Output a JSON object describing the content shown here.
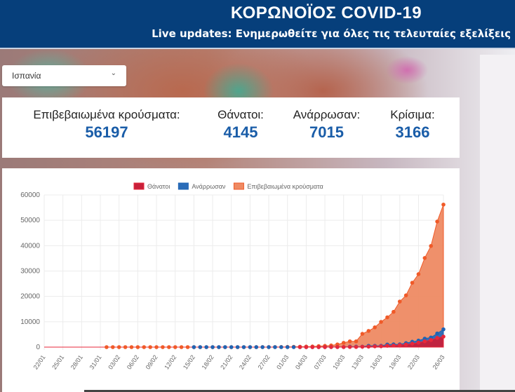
{
  "header": {
    "title": "ΚΟΡΩΝΟΪΟΣ COVID-19",
    "subtitle": "Live updates: Ενημερωθείτε για όλες τις τελευταίες εξελίξεις"
  },
  "country_select": {
    "value": "Ισπανία"
  },
  "stats": [
    {
      "label": "Επιβεβαιωμένα κρούσματα:",
      "value": "56197"
    },
    {
      "label": "Θάνατοι:",
      "value": "4145"
    },
    {
      "label": "Ανάρρωσαν:",
      "value": "7015"
    },
    {
      "label": "Κρίσιμα:",
      "value": "3166"
    }
  ],
  "chart_data": {
    "type": "area",
    "legend_position": "top",
    "ylim": [
      0,
      60000
    ],
    "yticks": [
      0,
      10000,
      20000,
      30000,
      40000,
      50000,
      60000
    ],
    "x": [
      "22/01",
      "23/01",
      "24/01",
      "25/01",
      "26/01",
      "27/01",
      "28/01",
      "29/01",
      "30/01",
      "31/01",
      "01/02",
      "02/02",
      "03/02",
      "04/02",
      "05/02",
      "06/02",
      "07/02",
      "08/02",
      "09/02",
      "10/02",
      "11/02",
      "12/02",
      "13/02",
      "14/02",
      "15/02",
      "16/02",
      "17/02",
      "18/02",
      "19/02",
      "20/02",
      "21/02",
      "22/02",
      "23/02",
      "24/02",
      "25/02",
      "26/02",
      "27/02",
      "28/02",
      "29/02",
      "01/03",
      "02/03",
      "03/03",
      "04/03",
      "05/03",
      "06/03",
      "07/03",
      "08/03",
      "09/03",
      "10/03",
      "11/03",
      "12/03",
      "13/03",
      "14/03",
      "15/03",
      "16/03",
      "17/03",
      "18/03",
      "19/03",
      "20/03",
      "21/03",
      "22/03",
      "23/03",
      "24/03",
      "25/03",
      "26/03"
    ],
    "xtick_labels": [
      "22/01",
      "25/01",
      "28/01",
      "31/01",
      "03/02",
      "06/02",
      "09/02",
      "12/02",
      "15/02",
      "18/02",
      "21/02",
      "24/02",
      "27/02",
      "01/03",
      "04/03",
      "07/03",
      "10/03",
      "13/03",
      "16/03",
      "19/03",
      "22/03",
      "26/03"
    ],
    "series": [
      {
        "name": "Θάνατοι",
        "color": "#e8273a",
        "fill": "#c8203a",
        "values": [
          0,
          0,
          0,
          0,
          0,
          0,
          0,
          0,
          0,
          0,
          0,
          0,
          0,
          0,
          0,
          0,
          0,
          0,
          0,
          0,
          0,
          0,
          0,
          0,
          0,
          0,
          0,
          0,
          0,
          0,
          0,
          0,
          0,
          0,
          0,
          0,
          0,
          0,
          0,
          0,
          0,
          1,
          2,
          3,
          5,
          10,
          17,
          28,
          35,
          54,
          55,
          133,
          195,
          289,
          342,
          533,
          623,
          830,
          1043,
          1375,
          1772,
          2311,
          2808,
          3647,
          4145
        ]
      },
      {
        "name": "Ανάρρωσαν",
        "color": "#1f64b4",
        "fill": "#2a6cb8",
        "values": [
          0,
          0,
          0,
          0,
          0,
          0,
          0,
          0,
          0,
          0,
          0,
          0,
          0,
          0,
          0,
          0,
          0,
          0,
          0,
          0,
          0,
          0,
          0,
          0,
          2,
          2,
          2,
          2,
          2,
          2,
          2,
          2,
          2,
          2,
          2,
          2,
          2,
          2,
          2,
          2,
          2,
          2,
          2,
          2,
          2,
          30,
          30,
          32,
          32,
          183,
          183,
          193,
          517,
          517,
          530,
          1028,
          1081,
          1107,
          1588,
          2125,
          2575,
          3355,
          3794,
          5367,
          7015
        ]
      },
      {
        "name": "Επιβεβαιωμένα κρούσματα",
        "color": "#f05a28",
        "fill": "#ee8a63",
        "values": [
          0,
          0,
          0,
          0,
          0,
          0,
          0,
          0,
          0,
          0,
          1,
          1,
          1,
          1,
          1,
          1,
          1,
          1,
          2,
          2,
          2,
          2,
          2,
          2,
          2,
          2,
          2,
          2,
          2,
          2,
          2,
          2,
          2,
          2,
          6,
          13,
          15,
          32,
          45,
          84,
          120,
          165,
          222,
          259,
          400,
          500,
          673,
          1073,
          1695,
          2277,
          2277,
          5232,
          6391,
          7798,
          9942,
          11748,
          13910,
          17963,
          20410,
          25374,
          28768,
          35136,
          39885,
          49515,
          56197
        ]
      }
    ]
  }
}
